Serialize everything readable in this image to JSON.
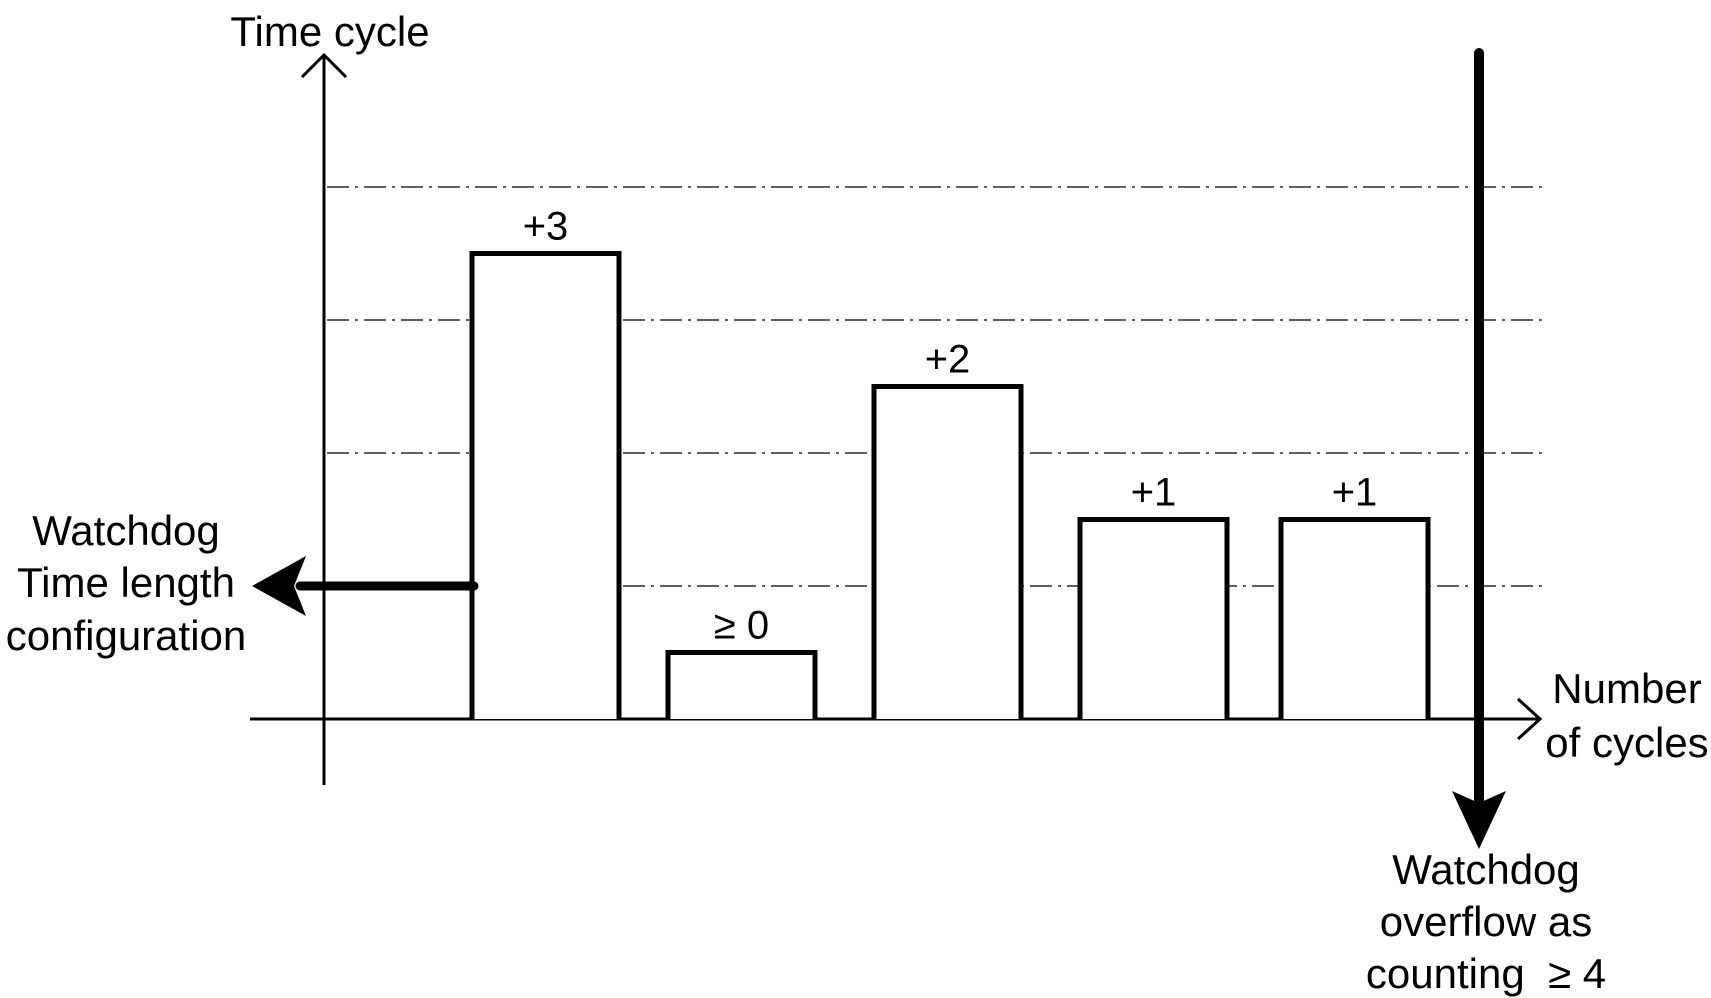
{
  "y_axis_label": "Time cycle",
  "x_axis_label": [
    "Number",
    "of cycles"
  ],
  "bars": [
    {
      "label": "+3",
      "level": 3.5
    },
    {
      "label": "≥ 0",
      "level": 0.5
    },
    {
      "label": "+2",
      "level": 2.5
    },
    {
      "label": "+1",
      "level": 1.5
    },
    {
      "label": "+1",
      "level": 1.5
    }
  ],
  "gridline_levels": [
    1,
    2,
    3,
    4
  ],
  "watchdog_config_label": [
    "Watchdog",
    "Time length",
    "configuration"
  ],
  "watchdog_overflow_label": [
    "Watchdog",
    "overflow as",
    "counting  ≥ 4"
  ]
}
